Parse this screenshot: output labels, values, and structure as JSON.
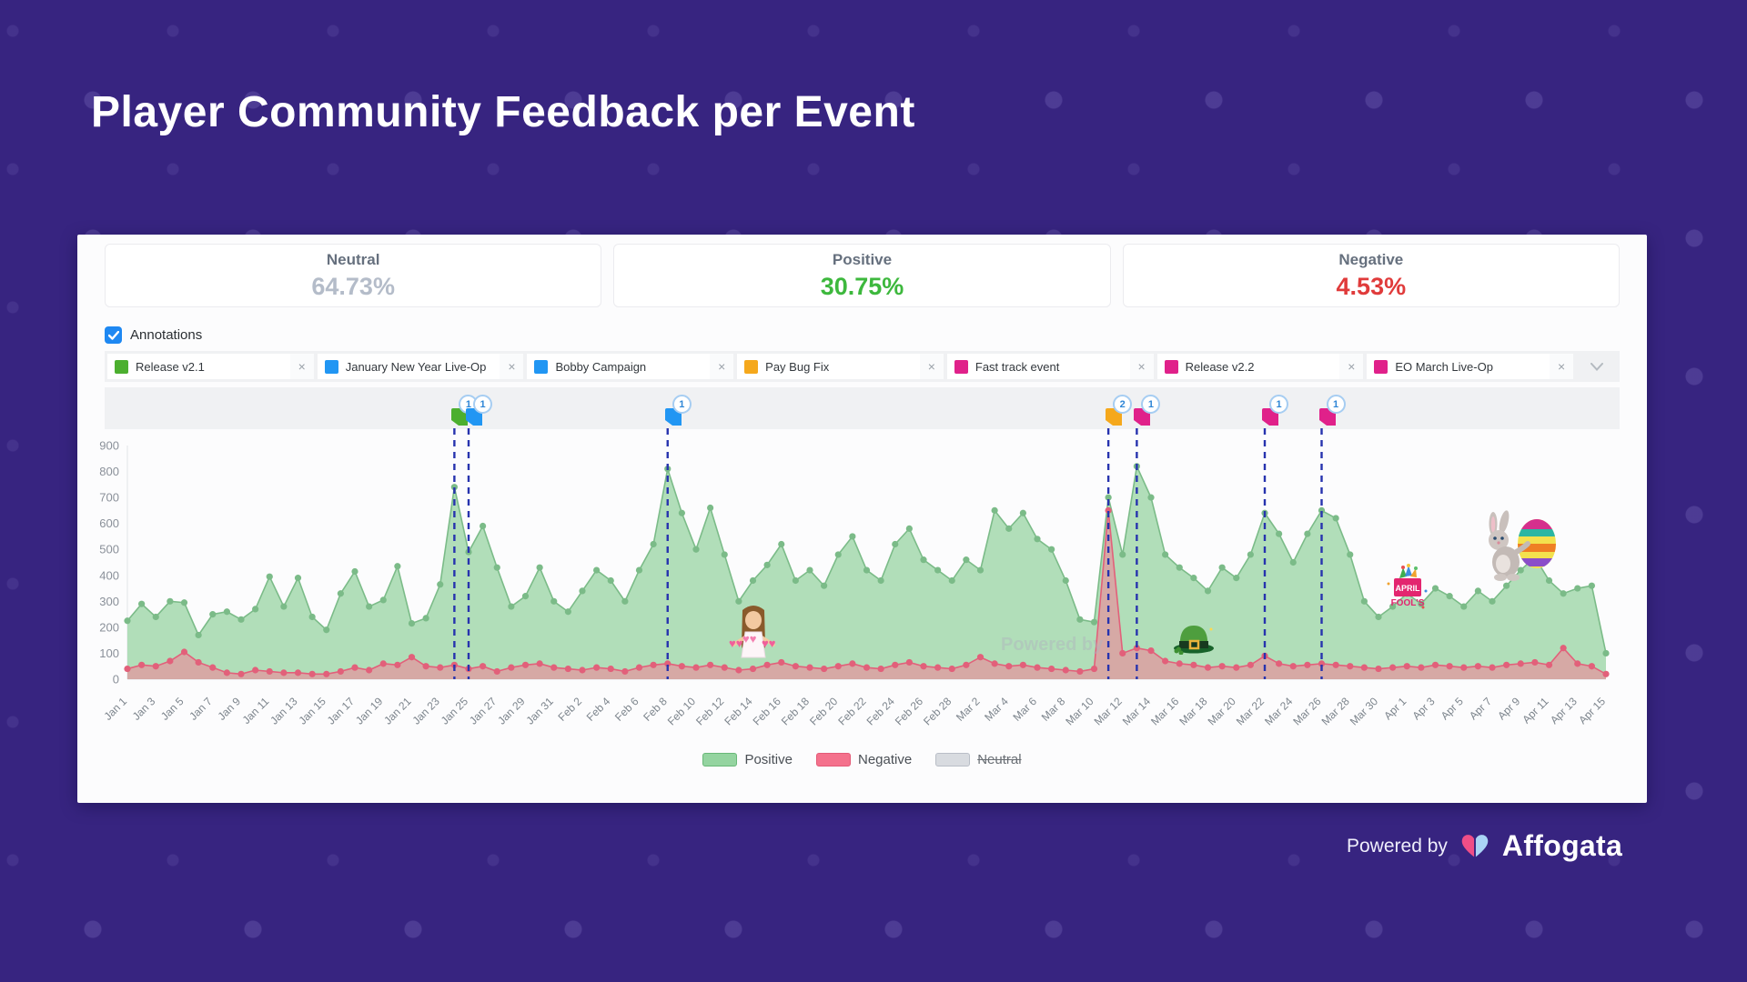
{
  "page": {
    "title": "Player Community Feedback per Event"
  },
  "stats": [
    {
      "label": "Neutral",
      "value": "64.73%",
      "color": "#b4bcc9"
    },
    {
      "label": "Positive",
      "value": "30.75%",
      "color": "#3db83d"
    },
    {
      "label": "Negative",
      "value": "4.53%",
      "color": "#e03b3b"
    }
  ],
  "annotations": {
    "toggle_label": "Annotations",
    "checked": true,
    "remove_icon": "×",
    "tags": [
      {
        "label": "Release v2.1",
        "color": "#4caf2f"
      },
      {
        "label": "January New Year Live-Op",
        "color": "#2196f3"
      },
      {
        "label": "Bobby Campaign",
        "color": "#2196f3"
      },
      {
        "label": "Pay Bug Fix",
        "color": "#f5a81c"
      },
      {
        "label": "Fast track event",
        "color": "#e0218a"
      },
      {
        "label": "Release v2.2",
        "color": "#e0218a"
      },
      {
        "label": "EO March Live-Op",
        "color": "#e0218a"
      }
    ]
  },
  "markers": [
    {
      "date": "Jan 24",
      "count": "1",
      "color": "#4caf2f"
    },
    {
      "date": "Jan 25",
      "count": "1",
      "color": "#2196f3"
    },
    {
      "date": "Feb 8",
      "count": "1",
      "color": "#2196f3"
    },
    {
      "date": "Mar 11",
      "count": "2",
      "color": "#f5a81c"
    },
    {
      "date": "Mar 13",
      "count": "1",
      "color": "#e0218a"
    },
    {
      "date": "Mar 22",
      "count": "1",
      "color": "#e0218a"
    },
    {
      "date": "Mar 26",
      "count": "1",
      "color": "#e0218a"
    }
  ],
  "chart_data": {
    "type": "area",
    "title": "Player Community Feedback per Event",
    "ylim": [
      0,
      900
    ],
    "yticks": [
      0,
      100,
      200,
      300,
      400,
      500,
      600,
      700,
      800,
      900
    ],
    "xtick_step": 2,
    "grid": false,
    "legend_position": "bottom",
    "annotation_days": [
      "Jan 24",
      "Jan 25",
      "Feb 8",
      "Mar 11",
      "Mar 13",
      "Mar 22",
      "Mar 26"
    ],
    "x": [
      "Jan 1",
      "Jan 2",
      "Jan 3",
      "Jan 4",
      "Jan 5",
      "Jan 6",
      "Jan 7",
      "Jan 8",
      "Jan 9",
      "Jan 10",
      "Jan 11",
      "Jan 12",
      "Jan 13",
      "Jan 14",
      "Jan 15",
      "Jan 16",
      "Jan 17",
      "Jan 18",
      "Jan 19",
      "Jan 20",
      "Jan 21",
      "Jan 22",
      "Jan 23",
      "Jan 24",
      "Jan 25",
      "Jan 26",
      "Jan 27",
      "Jan 28",
      "Jan 29",
      "Jan 30",
      "Jan 31",
      "Feb 1",
      "Feb 2",
      "Feb 3",
      "Feb 4",
      "Feb 5",
      "Feb 6",
      "Feb 7",
      "Feb 8",
      "Feb 9",
      "Feb 10",
      "Feb 11",
      "Feb 12",
      "Feb 13",
      "Feb 14",
      "Feb 15",
      "Feb 16",
      "Feb 17",
      "Feb 18",
      "Feb 19",
      "Feb 20",
      "Feb 21",
      "Feb 22",
      "Feb 23",
      "Feb 24",
      "Feb 25",
      "Feb 26",
      "Feb 27",
      "Feb 28",
      "Mar 1",
      "Mar 2",
      "Mar 3",
      "Mar 4",
      "Mar 5",
      "Mar 6",
      "Mar 7",
      "Mar 8",
      "Mar 9",
      "Mar 10",
      "Mar 11",
      "Mar 12",
      "Mar 13",
      "Mar 14",
      "Mar 15",
      "Mar 16",
      "Mar 17",
      "Mar 18",
      "Mar 19",
      "Mar 20",
      "Mar 21",
      "Mar 22",
      "Mar 23",
      "Mar 24",
      "Mar 25",
      "Mar 26",
      "Mar 27",
      "Mar 28",
      "Mar 29",
      "Mar 30",
      "Mar 31",
      "Apr 1",
      "Apr 2",
      "Apr 3",
      "Apr 4",
      "Apr 5",
      "Apr 6",
      "Apr 7",
      "Apr 8",
      "Apr 9",
      "Apr 10",
      "Apr 11",
      "Apr 12",
      "Apr 13",
      "Apr 14",
      "Apr 15"
    ],
    "series": [
      {
        "name": "Positive",
        "color": "#7bbb88",
        "fill": "#9dd6a8",
        "values": [
          225,
          290,
          240,
          300,
          295,
          170,
          250,
          260,
          230,
          270,
          395,
          280,
          390,
          240,
          190,
          330,
          415,
          280,
          305,
          435,
          215,
          235,
          365,
          740,
          490,
          590,
          430,
          280,
          320,
          430,
          300,
          260,
          340,
          420,
          380,
          300,
          420,
          520,
          810,
          640,
          500,
          660,
          480,
          300,
          380,
          440,
          520,
          380,
          420,
          360,
          480,
          550,
          420,
          380,
          520,
          580,
          460,
          420,
          380,
          460,
          420,
          650,
          580,
          640,
          540,
          500,
          380,
          230,
          220,
          700,
          480,
          820,
          700,
          480,
          430,
          390,
          340,
          430,
          390,
          480,
          640,
          560,
          450,
          560,
          650,
          620,
          480,
          300,
          240,
          280,
          330,
          290,
          350,
          320,
          280,
          340,
          300,
          360,
          420,
          470,
          380,
          330,
          350,
          360,
          100
        ]
      },
      {
        "name": "Negative",
        "color": "#e2607a",
        "fill": "#ee8598",
        "values": [
          40,
          55,
          50,
          70,
          105,
          65,
          45,
          25,
          20,
          35,
          30,
          25,
          25,
          20,
          20,
          30,
          45,
          35,
          60,
          55,
          85,
          50,
          45,
          55,
          40,
          50,
          30,
          45,
          55,
          60,
          45,
          40,
          35,
          45,
          40,
          30,
          45,
          55,
          60,
          50,
          45,
          55,
          45,
          35,
          40,
          55,
          65,
          50,
          45,
          40,
          50,
          60,
          45,
          40,
          55,
          65,
          50,
          45,
          40,
          55,
          85,
          60,
          50,
          55,
          45,
          40,
          35,
          30,
          40,
          650,
          100,
          120,
          110,
          70,
          60,
          55,
          45,
          50,
          45,
          55,
          90,
          60,
          50,
          55,
          60,
          55,
          50,
          45,
          40,
          45,
          50,
          45,
          55,
          50,
          45,
          50,
          45,
          55,
          60,
          65,
          55,
          120,
          60,
          50,
          20
        ]
      }
    ],
    "legend": [
      {
        "label": "Positive",
        "color": "#94d4a0",
        "border": "#69b878",
        "disabled": false
      },
      {
        "label": "Negative",
        "color": "#f4718c",
        "border": "#e45a77",
        "disabled": false
      },
      {
        "label": "Neutral",
        "color": "#d8dbe0",
        "border": "#b9bec7",
        "disabled": true
      }
    ]
  },
  "decorations": [
    {
      "name": "valentines-character",
      "date": "Feb 14"
    },
    {
      "name": "st-patricks-hat",
      "date": "Mar 17"
    },
    {
      "name": "april-fools-gift",
      "date": "Apr 1"
    },
    {
      "name": "easter-bunny",
      "date": "Apr 9"
    }
  ],
  "watermark": "Powered by",
  "footer": {
    "powered_by": "Powered by",
    "brand": "Affogata"
  }
}
